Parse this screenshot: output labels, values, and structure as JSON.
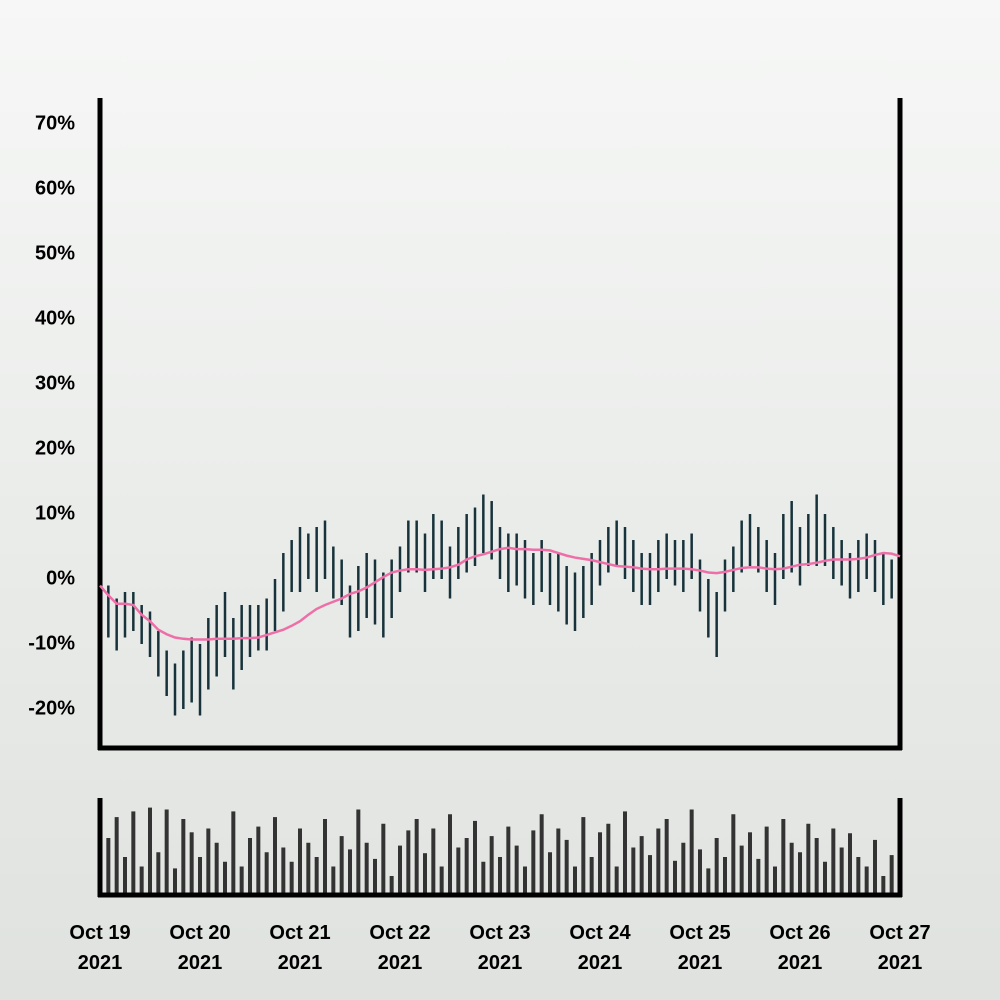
{
  "chart_data": {
    "type": "ohlc",
    "categories": [
      "Oct 19\n2021",
      null,
      null,
      null,
      null,
      null,
      null,
      null,
      null,
      null,
      null,
      null,
      "Oct 20\n2021",
      null,
      null,
      null,
      null,
      null,
      null,
      null,
      null,
      null,
      null,
      null,
      "Oct 21\n2021",
      null,
      null,
      null,
      null,
      null,
      null,
      null,
      null,
      null,
      null,
      null,
      "Oct 22\n2021",
      null,
      null,
      null,
      null,
      null,
      null,
      null,
      null,
      null,
      null,
      null,
      "Oct 23\n2021",
      null,
      null,
      null,
      null,
      null,
      null,
      null,
      null,
      null,
      null,
      null,
      "Oct 24\n2021",
      null,
      null,
      null,
      null,
      null,
      null,
      null,
      null,
      null,
      null,
      null,
      "Oct 25\n2021",
      null,
      null,
      null,
      null,
      null,
      null,
      null,
      null,
      null,
      null,
      null,
      "Oct 26\n2021",
      null,
      null,
      null,
      null,
      null,
      null,
      null,
      null,
      null,
      null,
      null,
      "Oct 27\n2021"
    ],
    "low": [
      -4,
      -9,
      -11,
      -9,
      -8,
      -10,
      -12,
      -15,
      -18,
      -21,
      -20,
      -19,
      -21,
      -17,
      -15,
      -12,
      -17,
      -14,
      -12,
      -11,
      -11,
      -8,
      -5,
      -2,
      -2,
      0,
      -2,
      0,
      -3,
      -4,
      -9,
      -8,
      -6,
      -7,
      -9,
      -6,
      -2,
      1,
      1,
      -2,
      0,
      0,
      -3,
      0,
      1,
      2,
      4,
      3,
      0,
      -2,
      -1,
      -3,
      -4,
      -2,
      -4,
      -5,
      -7,
      -8,
      -6,
      -4,
      -1,
      1,
      2,
      0,
      -2,
      -4,
      -4,
      -2,
      0,
      -1,
      -2,
      0,
      -5,
      -9,
      -12,
      -5,
      -2,
      1,
      2,
      1,
      -2,
      -4,
      0,
      1,
      -1,
      2,
      2,
      2,
      0,
      -1,
      -3,
      -2,
      0,
      -2,
      -4,
      -3,
      -4
    ],
    "high": [
      4,
      -1,
      -3,
      -2,
      -2,
      -4,
      -5,
      -8,
      -11,
      -13,
      -11,
      -9,
      -10,
      -6,
      -4,
      -2,
      -6,
      -4,
      -4,
      -4,
      -3,
      0,
      4,
      6,
      8,
      7,
      8,
      9,
      5,
      3,
      -1,
      2,
      4,
      3,
      1,
      3,
      5,
      9,
      9,
      7,
      10,
      9,
      5,
      8,
      10,
      11,
      13,
      12,
      8,
      7,
      7,
      6,
      4,
      6,
      4,
      4,
      2,
      1,
      2,
      4,
      6,
      8,
      9,
      8,
      6,
      4,
      4,
      6,
      7,
      6,
      6,
      7,
      3,
      0,
      -2,
      3,
      5,
      9,
      10,
      8,
      6,
      4,
      10,
      12,
      8,
      10,
      13,
      10,
      8,
      6,
      4,
      6,
      7,
      6,
      4,
      3,
      2
    ],
    "ma": [
      -1,
      -2.5,
      -3.8,
      -3.8,
      -4,
      -5.5,
      -6.5,
      -7.8,
      -8.5,
      -9,
      -9.2,
      -9.3,
      -9.3,
      -9.3,
      -9.2,
      -9.2,
      -9.2,
      -9.1,
      -9.1,
      -9,
      -8.6,
      -8.2,
      -7.8,
      -7.2,
      -6.5,
      -5.5,
      -4.6,
      -4,
      -3.5,
      -3,
      -2.3,
      -1.9,
      -1.3,
      -0.5,
      0.3,
      1,
      1.3,
      1.5,
      1.5,
      1.4,
      1.5,
      1.6,
      1.8,
      2.2,
      3,
      3.5,
      3.8,
      4.2,
      4.6,
      4.8,
      4.6,
      4.6,
      4.5,
      4.5,
      4.4,
      4,
      3.6,
      3.3,
      3.1,
      2.9,
      2.6,
      2.3,
      2,
      1.9,
      1.8,
      1.6,
      1.5,
      1.5,
      1.6,
      1.6,
      1.6,
      1.5,
      1.3,
      1,
      0.9,
      1.1,
      1.4,
      1.7,
      1.8,
      1.8,
      1.6,
      1.5,
      1.6,
      1.9,
      2.2,
      2.3,
      2.5,
      2.8,
      3,
      3,
      3,
      3.1,
      3.3,
      3.7,
      4,
      3.9,
      3.5
    ],
    "volume": [
      72,
      60,
      82,
      40,
      88,
      30,
      92,
      45,
      90,
      28,
      80,
      66,
      40,
      70,
      55,
      35,
      88,
      30,
      60,
      72,
      45,
      82,
      50,
      35,
      70,
      55,
      40,
      80,
      30,
      62,
      48,
      90,
      55,
      38,
      75,
      20,
      52,
      68,
      80,
      44,
      70,
      30,
      85,
      50,
      60,
      78,
      35,
      62,
      40,
      72,
      52,
      30,
      68,
      85,
      45,
      70,
      58,
      30,
      82,
      40,
      66,
      75,
      30,
      88,
      50,
      62,
      42,
      70,
      80,
      36,
      55,
      90,
      48,
      28,
      60,
      40,
      85,
      52,
      66,
      38,
      72,
      30,
      80,
      55,
      45,
      75,
      60,
      35,
      70,
      50,
      65,
      40,
      30,
      58,
      20,
      42,
      38
    ],
    "ylim": [
      -26,
      73.7
    ],
    "yticks": [
      {
        "value": -20,
        "label": "-20%"
      },
      {
        "value": -10,
        "label": "-10%"
      },
      {
        "value": 0,
        "label": "0%"
      },
      {
        "value": 10,
        "label": "10%"
      },
      {
        "value": 20,
        "label": "20%"
      },
      {
        "value": 30,
        "label": "30%"
      },
      {
        "value": 40,
        "label": "40%"
      },
      {
        "value": 50,
        "label": "50%"
      },
      {
        "value": 60,
        "label": "60%"
      },
      {
        "value": 70,
        "label": "70%"
      }
    ],
    "volume_ylim": [
      0,
      100
    ],
    "bar_color": "#17323a",
    "ma_color": "#ee6fa8",
    "volume_color": "#333333"
  }
}
